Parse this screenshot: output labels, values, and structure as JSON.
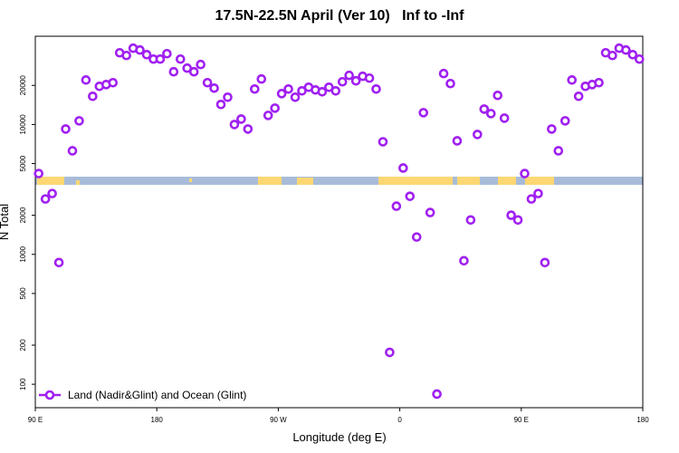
{
  "chart_data": {
    "type": "scatter",
    "title": "17.5N-22.5N April (Ver 10)   Inf to -Inf",
    "x_label": "Longitude (deg E)",
    "y_label": "N Total",
    "log_y": true,
    "grid": false,
    "legend_position": "lower left",
    "xlim": [
      90,
      540
    ],
    "xticks": [
      {
        "value": 90,
        "label": "90 E"
      },
      180,
      {
        "value": 270,
        "label": "90 W"
      },
      {
        "value": 360,
        "label": "0"
      },
      {
        "value": 450,
        "label": "90 E"
      },
      {
        "value": 540,
        "label": "180"
      }
    ],
    "ylim": [
      66,
      47800
    ],
    "yticks": [
      100,
      200,
      500,
      1000,
      2000,
      5000,
      10000,
      20000
    ],
    "x": [
      92.5,
      97.5,
      102.5,
      107.5,
      112.5,
      117.5,
      122.5,
      127.5,
      132.5,
      137.5,
      142.5,
      147.5,
      152.5,
      157.5,
      162.5,
      167.5,
      172.5,
      177.5,
      182.5,
      187.5,
      192.5,
      197.5,
      202.5,
      207.5,
      212.5,
      217.5,
      222.5,
      227.5,
      232.5,
      237.5,
      242.5,
      247.5,
      252.5,
      257.5,
      262.5,
      267.5,
      272.5,
      277.5,
      282.5,
      287.5,
      292.5,
      297.5,
      302.5,
      307.5,
      312.5,
      317.5,
      322.5,
      327.5,
      332.5,
      337.5,
      342.5,
      347.5,
      352.5,
      357.5,
      362.5,
      367.5,
      372.5,
      377.5,
      382.5,
      387.5,
      392.5,
      397.5,
      402.5,
      407.5,
      412.5,
      417.5,
      422.5,
      427.5,
      432.5,
      437.5,
      442.5,
      447.5,
      452.5,
      457.5,
      462.5,
      467.5,
      472.5,
      477.5,
      482.5,
      487.5,
      492.5,
      497.5,
      502.5,
      507.5,
      512.5,
      517.5,
      522.5,
      527.5,
      532.5,
      537.5
    ],
    "series": [
      {
        "name": "Land (Nadir&Glint) and Ocean (Glint)",
        "color": "#a020f0",
        "values": [
          4190,
          2670,
          2940,
          865,
          9230,
          6270,
          10670,
          22000,
          16480,
          19670,
          20300,
          20990,
          35660,
          33980,
          38650,
          37430,
          34510,
          31860,
          31860,
          35090,
          25460,
          31860,
          27160,
          25460,
          28960,
          20990,
          19050,
          14260,
          16220,
          10000,
          11010,
          9230,
          18750,
          22390,
          11750,
          13360,
          17280,
          18750,
          16220,
          18150,
          19350,
          18450,
          17860,
          19350,
          18150,
          21330,
          23880,
          21680,
          23500,
          22740,
          18750,
          7360,
          176,
          2350,
          4620,
          2800,
          1360,
          12330,
          2100,
          84,
          24660,
          20650,
          7480,
          893,
          1840,
          8380,
          13140,
          12130,
          16750,
          11190,
          2000,
          1840,
          4190,
          2670,
          2940,
          865,
          9230,
          6270,
          10670,
          22000,
          16480,
          19670,
          20300,
          20990,
          35660,
          33980,
          38650,
          37430,
          34510,
          31860
        ]
      }
    ]
  }
}
